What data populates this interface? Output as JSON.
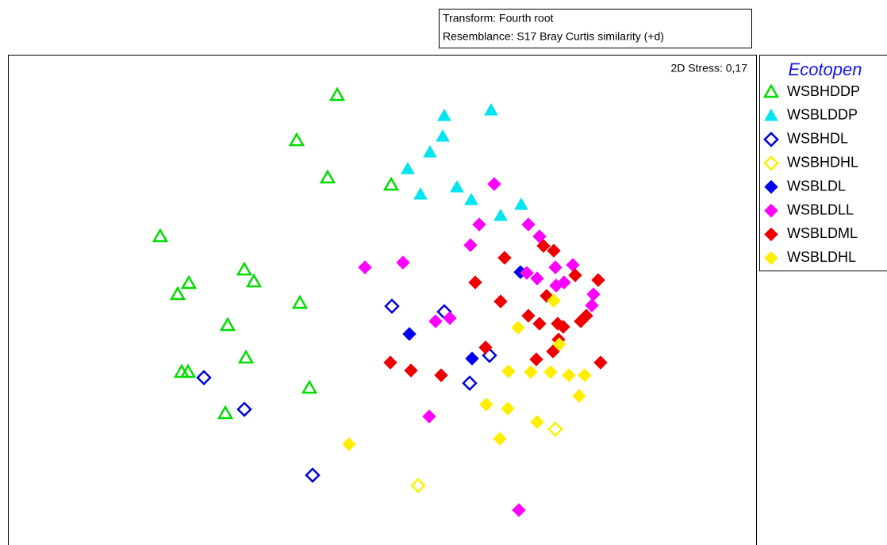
{
  "chart_data": {
    "type": "scatter",
    "transform": "Transform: Fourth root",
    "resemblance": "Resemblance: S17 Bray Curtis similarity (+d)",
    "stress": "2D Stress: 0,17",
    "legend_title": "Ecotopen",
    "legend": "right",
    "xlim": [
      -4.7,
      4.73
    ],
    "ylim": [
      -3.09,
      3.09
    ],
    "series": [
      {
        "name": "WSBHDDP",
        "color": "#00dd00",
        "marker": "triangle",
        "filled": false,
        "x": [
          -0.55,
          -1.06,
          -0.67,
          0.13,
          -2.78,
          -1.72,
          -2.42,
          -1.6,
          -2.56,
          -1.02,
          -1.93,
          -1.7,
          -2.51,
          -2.43,
          -0.9,
          -1.96
        ],
        "y": [
          2.58,
          2.01,
          1.54,
          1.45,
          0.8,
          0.38,
          0.21,
          0.23,
          0.07,
          -0.04,
          -0.32,
          -0.73,
          -0.91,
          -0.91,
          -1.11,
          -1.43
        ]
      },
      {
        "name": "WSBLDDP",
        "color": "#00e5ee",
        "marker": "triangle",
        "filled": true,
        "x": [
          1.39,
          0.8,
          0.78,
          0.62,
          0.34,
          0.5,
          0.96,
          1.14,
          1.77,
          1.51
        ],
        "y": [
          2.39,
          2.32,
          2.06,
          1.86,
          1.65,
          1.33,
          1.42,
          1.26,
          1.2,
          1.06
        ]
      },
      {
        "name": "WSBHDL",
        "color": "#0000dd",
        "marker": "diamond",
        "filled": false,
        "x": [
          0.14,
          0.8,
          1.37,
          -2.23,
          1.12,
          -1.72,
          -0.86
        ],
        "y": [
          -0.08,
          -0.15,
          -0.7,
          -0.98,
          -1.05,
          -1.38,
          -2.21
        ]
      },
      {
        "name": "WSBHDHL",
        "color": "#f5f500",
        "marker": "diamond",
        "filled": false,
        "x": [
          2.2,
          0.47
        ],
        "y": [
          -1.63,
          -2.34
        ]
      },
      {
        "name": "WSBLDL",
        "color": "#0000ee",
        "marker": "diamond",
        "filled": true,
        "x": [
          1.76,
          0.36,
          1.15
        ],
        "y": [
          0.35,
          -0.43,
          -0.74
        ]
      },
      {
        "name": "WSBLDLL",
        "color": "#ff00ff",
        "marker": "diamond",
        "filled": true,
        "x": [
          1.43,
          1.24,
          1.86,
          2.0,
          1.13,
          -0.2,
          0.28,
          2.2,
          2.42,
          1.84,
          1.97,
          2.31,
          2.21,
          2.68,
          0.69,
          0.87,
          2.66,
          0.61,
          1.74
        ],
        "y": [
          1.46,
          0.95,
          0.95,
          0.8,
          0.69,
          0.41,
          0.47,
          0.41,
          0.44,
          0.34,
          0.27,
          0.22,
          0.18,
          0.07,
          -0.27,
          -0.23,
          -0.07,
          -1.47,
          -2.65
        ]
      },
      {
        "name": "WSBLDML",
        "color": "#ee0000",
        "marker": "diamond",
        "filled": true,
        "x": [
          2.05,
          2.18,
          1.56,
          2.45,
          2.74,
          2.09,
          1.19,
          1.51,
          1.86,
          2.0,
          2.23,
          2.3,
          2.59,
          2.52,
          2.24,
          2.17,
          1.32,
          1.96,
          2.77,
          0.12,
          0.38,
          0.76
        ],
        "y": [
          0.68,
          0.62,
          0.53,
          0.31,
          0.25,
          0.05,
          0.22,
          -0.02,
          -0.2,
          -0.3,
          -0.3,
          -0.34,
          -0.2,
          -0.27,
          -0.5,
          -0.65,
          -0.6,
          -0.75,
          -0.79,
          -0.79,
          -0.89,
          -0.95
        ]
      },
      {
        "name": "WSBLDHL",
        "color": "#ffee00",
        "marker": "diamond",
        "filled": true,
        "x": [
          2.18,
          1.73,
          2.25,
          1.61,
          1.89,
          2.14,
          2.37,
          2.57,
          2.5,
          1.33,
          1.6,
          1.97,
          1.5,
          -0.4
        ],
        "y": [
          -0.01,
          -0.35,
          -0.56,
          -0.9,
          -0.91,
          -0.91,
          -0.95,
          -0.95,
          -1.21,
          -1.32,
          -1.37,
          -1.54,
          -1.75,
          -1.82
        ]
      }
    ]
  }
}
